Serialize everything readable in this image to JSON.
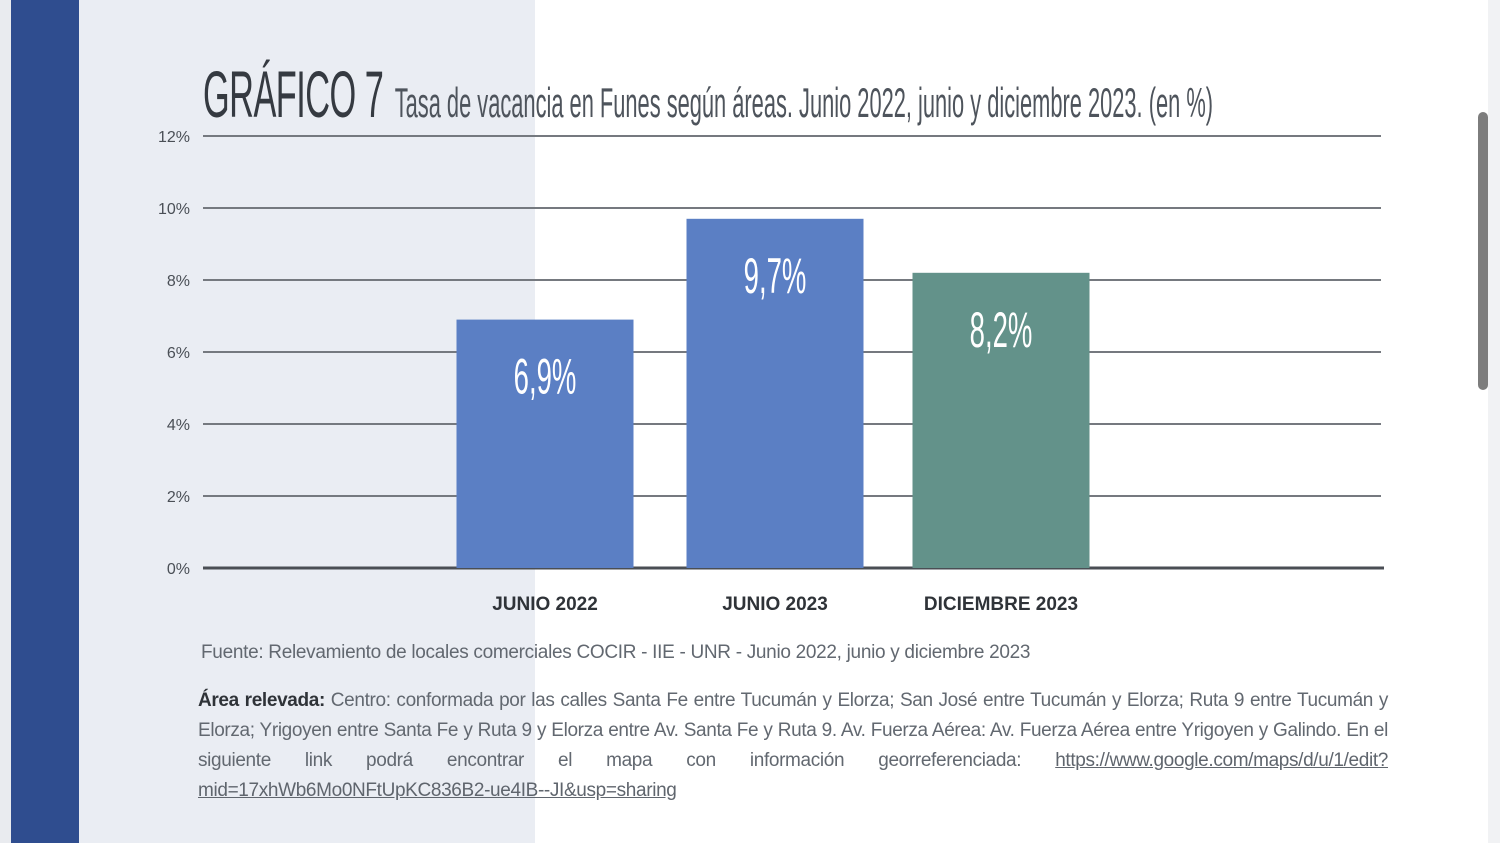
{
  "figure": {
    "label": "GRÁFICO 7",
    "subtitle": "Tasa de vacancia en Funes según áreas. Junio 2022, junio y diciembre 2023. (en %)"
  },
  "chart_data": {
    "type": "bar",
    "categories": [
      "JUNIO 2022",
      "JUNIO 2023",
      "DICIEMBRE 2023"
    ],
    "values": [
      6.9,
      9.7,
      8.2
    ],
    "data_labels": [
      "6,9%",
      "9,7%",
      "8,2%"
    ],
    "colors": [
      "#5b7fc4",
      "#5b7fc4",
      "#63928a"
    ],
    "ylim": [
      0,
      12
    ],
    "yticks": [
      0,
      2,
      4,
      6,
      8,
      10,
      12
    ],
    "ytick_labels": [
      "0%",
      "2%",
      "4%",
      "6%",
      "8%",
      "10%",
      "12%"
    ],
    "grid": true,
    "legend": "none"
  },
  "notes": {
    "source": "Fuente: Relevamiento de locales comerciales COCIR - IIE - UNR - Junio 2022, junio y diciembre 2023",
    "area_label": "Área relevada:",
    "area_text": "Centro: conformada por las calles Santa Fe entre Tucumán y Elorza; San José entre Tucumán y Elorza; Ruta 9 entre Tucumán y Elorza; Yrigoyen entre Santa Fe y Ruta 9 y Elorza entre Av. Santa Fe y Ruta 9. Av. Fuerza Aérea: Av. Fuerza Aérea entre Yrigoyen y Galindo. En el siguiente link podrá encontrar el mapa con información georreferenciada:",
    "link": "https://www.google.com/maps/d/u/1/edit?mid=17xhWb6Mo0NFtUpKC836B2-ue4IB--JI&usp=sharing"
  }
}
